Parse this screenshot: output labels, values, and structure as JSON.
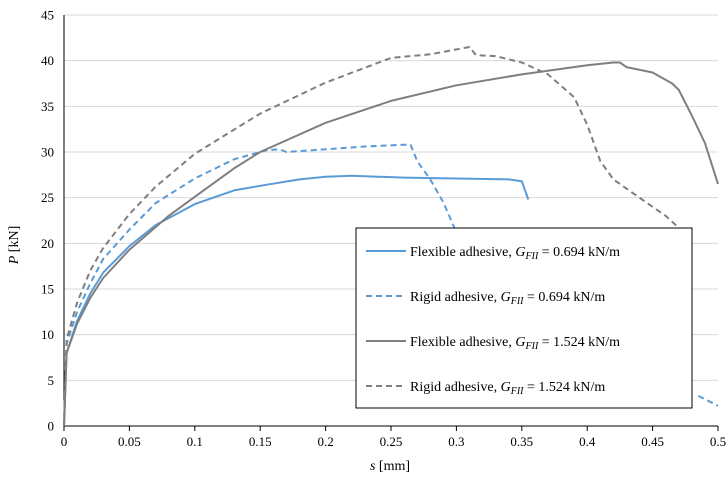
{
  "chart_data": {
    "type": "line",
    "title": "",
    "xlabel": {
      "italic": "s",
      "unit": " [mm]"
    },
    "ylabel": {
      "italic": "P",
      "unit": " [kN]"
    },
    "xlim": [
      0,
      0.5
    ],
    "ylim": [
      0,
      45
    ],
    "xticks": [
      0,
      0.05,
      0.1,
      0.15,
      0.2,
      0.25,
      0.3,
      0.35,
      0.4,
      0.45,
      0.5
    ],
    "xtick_labels": [
      "0",
      "0.05",
      "0.1",
      "0.15",
      "0.2",
      "0.25",
      "0.3",
      "0.35",
      "0.4",
      "0.45",
      "0.5"
    ],
    "yticks": [
      0,
      5,
      10,
      15,
      20,
      25,
      30,
      35,
      40,
      45
    ],
    "ytick_labels": [
      "0",
      "5",
      "10",
      "15",
      "20",
      "25",
      "30",
      "35",
      "40",
      "45"
    ],
    "grid": "horizontal",
    "legend_position": "lower-right",
    "series": [
      {
        "name": {
          "pre": "Flexible adhesive, ",
          "sym": "G",
          "sub": "FII",
          "post": " = 0.694 kN/m"
        },
        "color": "#5B9BD5",
        "dash": "solid",
        "points": [
          [
            0,
            0
          ],
          [
            0.002,
            8
          ],
          [
            0.01,
            11.5
          ],
          [
            0.02,
            14.5
          ],
          [
            0.03,
            16.8
          ],
          [
            0.05,
            19.7
          ],
          [
            0.07,
            22
          ],
          [
            0.1,
            24.3
          ],
          [
            0.13,
            25.8
          ],
          [
            0.15,
            26.3
          ],
          [
            0.18,
            27
          ],
          [
            0.2,
            27.3
          ],
          [
            0.22,
            27.4
          ],
          [
            0.24,
            27.3
          ],
          [
            0.26,
            27.2
          ],
          [
            0.3,
            27.1
          ],
          [
            0.34,
            27
          ],
          [
            0.35,
            26.8
          ],
          [
            0.355,
            24.8
          ]
        ]
      },
      {
        "name": {
          "pre": "Rigid adhesive, ",
          "sym": "G",
          "sub": "FII",
          "post": " = 0.694 kN/m"
        },
        "color": "#5B9BD5",
        "dash": "dashed",
        "points": [
          [
            0,
            0
          ],
          [
            0.002,
            9
          ],
          [
            0.01,
            12.5
          ],
          [
            0.02,
            15.6
          ],
          [
            0.03,
            18.3
          ],
          [
            0.05,
            21.5
          ],
          [
            0.07,
            24.4
          ],
          [
            0.1,
            27.1
          ],
          [
            0.13,
            29.2
          ],
          [
            0.155,
            30.2
          ],
          [
            0.165,
            30.3
          ],
          [
            0.17,
            30
          ],
          [
            0.2,
            30.3
          ],
          [
            0.23,
            30.6
          ],
          [
            0.26,
            30.8
          ],
          [
            0.265,
            30.8
          ],
          [
            0.27,
            29
          ],
          [
            0.28,
            27
          ],
          [
            0.29,
            24.5
          ],
          [
            0.3,
            21.2
          ]
        ]
      },
      {
        "name": {
          "pre": "Flexible adhesive, ",
          "sym": "G",
          "sub": "FII",
          "post": " = 1.524 kN/m"
        },
        "color": "#7F7F7F",
        "dash": "solid",
        "points": [
          [
            0,
            0
          ],
          [
            0.002,
            8
          ],
          [
            0.01,
            11.2
          ],
          [
            0.02,
            14
          ],
          [
            0.03,
            16.2
          ],
          [
            0.05,
            19.3
          ],
          [
            0.08,
            23
          ],
          [
            0.1,
            25.1
          ],
          [
            0.13,
            28.2
          ],
          [
            0.15,
            30
          ],
          [
            0.2,
            33.2
          ],
          [
            0.25,
            35.6
          ],
          [
            0.3,
            37.3
          ],
          [
            0.35,
            38.5
          ],
          [
            0.4,
            39.5
          ],
          [
            0.42,
            39.8
          ],
          [
            0.425,
            39.8
          ],
          [
            0.43,
            39.3
          ],
          [
            0.45,
            38.7
          ],
          [
            0.465,
            37.5
          ],
          [
            0.47,
            36.8
          ],
          [
            0.48,
            34
          ],
          [
            0.49,
            31
          ],
          [
            0.5,
            26.5
          ]
        ]
      },
      {
        "name": {
          "pre": "Rigid adhesive, ",
          "sym": "G",
          "sub": "FII",
          "post": " = 1.524 kN/m"
        },
        "color": "#7F7F7F",
        "dash": "dashed",
        "points": [
          [
            0,
            0
          ],
          [
            0.002,
            9.5
          ],
          [
            0.01,
            13.5
          ],
          [
            0.02,
            17
          ],
          [
            0.03,
            19.5
          ],
          [
            0.05,
            23.2
          ],
          [
            0.07,
            26.2
          ],
          [
            0.1,
            29.8
          ],
          [
            0.15,
            34.2
          ],
          [
            0.2,
            37.6
          ],
          [
            0.25,
            40.3
          ],
          [
            0.28,
            40.7
          ],
          [
            0.31,
            41.5
          ],
          [
            0.315,
            40.6
          ],
          [
            0.33,
            40.5
          ],
          [
            0.35,
            39.8
          ],
          [
            0.37,
            38.5
          ],
          [
            0.39,
            36
          ],
          [
            0.4,
            33
          ],
          [
            0.41,
            29
          ],
          [
            0.42,
            27
          ],
          [
            0.44,
            25
          ],
          [
            0.46,
            23
          ],
          [
            0.47,
            21.7
          ],
          [
            0.48,
            20.7
          ]
        ]
      },
      {
        "name": null,
        "color": "#5B9BD5",
        "dash": "dashed",
        "points": [
          [
            0.485,
            3.3
          ],
          [
            0.5,
            2.2
          ]
        ]
      }
    ]
  }
}
